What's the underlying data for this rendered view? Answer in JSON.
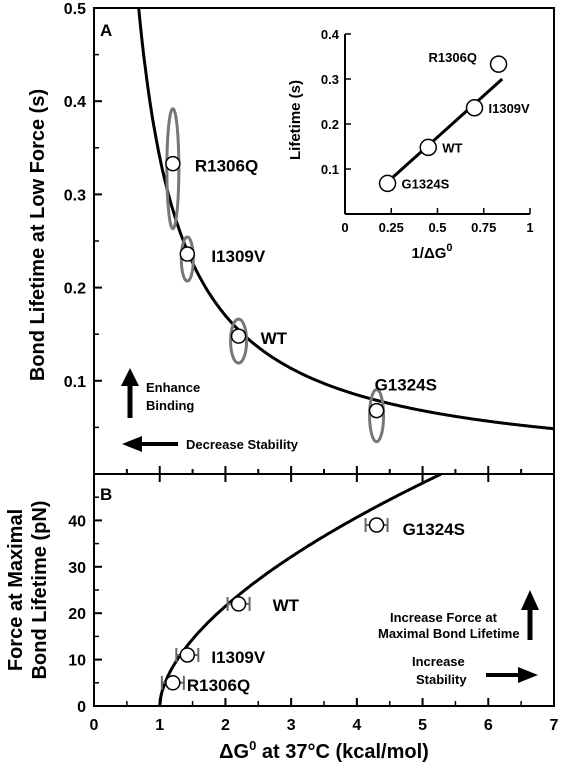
{
  "chart_data": [
    {
      "panel": "A",
      "type": "scatter",
      "ylabel": "Bond Lifetime at Low Force (s)",
      "xlim": [
        0,
        7
      ],
      "ylim": [
        0,
        0.5
      ],
      "yticks": [
        0.1,
        0.2,
        0.3,
        0.4,
        0.5
      ],
      "yticklabels": [
        "0.1",
        "0.2",
        "0.3",
        "0.4",
        "0.5"
      ],
      "points": [
        {
          "label": "R1306Q",
          "x": 1.2,
          "y": 0.333
        },
        {
          "label": "I1309V",
          "x": 1.42,
          "y": 0.236
        },
        {
          "label": "WT",
          "x": 2.2,
          "y": 0.148
        },
        {
          "label": "G1324S",
          "x": 4.3,
          "y": 0.068
        }
      ],
      "fit_curve": "y = 0.34 / x",
      "annotations": {
        "enhance_binding": "Enhance Binding",
        "decrease_stability": "Decrease Stability"
      },
      "inset": {
        "type": "scatter",
        "xlabel": "1/ΔG0",
        "ylabel": "Lifetime (s)",
        "xlim": [
          0,
          1
        ],
        "ylim": [
          0,
          0.4
        ],
        "xticks": [
          0,
          0.25,
          0.5,
          0.75,
          1
        ],
        "xticklabels": [
          "0",
          "0.25",
          "0.5",
          "0.75",
          "1"
        ],
        "yticks": [
          0.1,
          0.2,
          0.3,
          0.4
        ],
        "yticklabels": [
          "0.1",
          "0.2",
          "0.3",
          "0.4"
        ],
        "points": [
          {
            "label": "R1306Q",
            "x": 0.83,
            "y": 0.333
          },
          {
            "label": "I1309V",
            "x": 0.7,
            "y": 0.236
          },
          {
            "label": "WT",
            "x": 0.45,
            "y": 0.148
          },
          {
            "label": "G1324S",
            "x": 0.23,
            "y": 0.068
          }
        ],
        "fit_line": [
          [
            0.2,
            0.06
          ],
          [
            0.85,
            0.3
          ]
        ]
      }
    },
    {
      "panel": "B",
      "type": "scatter",
      "xlabel": "ΔG0 at 37°C (kcal/mol)",
      "ylabel": "Force at Maximal Bond Lifetime (pN)",
      "xlim": [
        0,
        7
      ],
      "ylim": [
        0,
        50
      ],
      "xticks": [
        0,
        1,
        2,
        3,
        4,
        5,
        6,
        7
      ],
      "xticklabels": [
        "0",
        "1",
        "2",
        "3",
        "4",
        "5",
        "6",
        "7"
      ],
      "yticks": [
        0,
        10,
        20,
        30,
        40
      ],
      "yticklabels": [
        "0",
        "10",
        "20",
        "30",
        "40"
      ],
      "points": [
        {
          "label": "R1306Q",
          "x": 1.2,
          "y": 5
        },
        {
          "label": "I1309V",
          "x": 1.42,
          "y": 11
        },
        {
          "label": "WT",
          "x": 2.2,
          "y": 22
        },
        {
          "label": "G1324S",
          "x": 4.3,
          "y": 39
        }
      ],
      "fit_curve": "y = 21.5 * (x - 1)^0.58",
      "annotations": {
        "increase_force_line1": "Increase Force at",
        "increase_force_line2": "Maximal Bond Lifetime",
        "increase_stability_line1": "Increase",
        "increase_stability_line2": "Stability"
      }
    }
  ],
  "labels": {
    "panel_a": "A",
    "panel_b": "B",
    "ylabel_a": "Bond Lifetime at Low Force (s)",
    "ylabel_b_line1": "Force at Maximal",
    "ylabel_b_line2": "Bond Lifetime (pN)",
    "xlabel_main": "ΔG",
    "xlabel_sup": "0",
    "xlabel_rest": " at 37°C (kcal/mol)",
    "inset_ylabel": "Lifetime (s)",
    "inset_xlabel_main": "1/ΔG",
    "inset_xlabel_sup": "0"
  }
}
